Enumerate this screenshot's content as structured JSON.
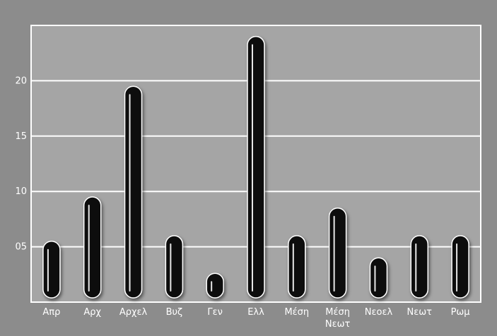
{
  "chart_data": {
    "type": "bar",
    "title": "",
    "xlabel": "",
    "ylabel": "",
    "categories": [
      "Απρ",
      "Αρχ",
      "Αρχελ",
      "Βυζ",
      "Γεν",
      "Ελλ",
      "Μέση",
      "Μέση Νεωτ",
      "Νεοελ",
      "Νεωτ",
      "Ρωμ"
    ],
    "values": [
      5.5,
      9.5,
      19.5,
      6,
      2.6,
      24,
      6,
      8.5,
      4,
      6,
      6
    ],
    "ylim": [
      0,
      25
    ],
    "yticks": [
      5,
      10,
      15,
      20,
      25
    ],
    "ytick_labels": [
      "05",
      "10",
      "15",
      "20",
      ""
    ],
    "grid": true,
    "colors": {
      "background": "#8c8c8c",
      "plot_area": "#a5a5a5",
      "grid": "#ffffff",
      "bar": "#111111",
      "text": "#ffffff"
    }
  }
}
